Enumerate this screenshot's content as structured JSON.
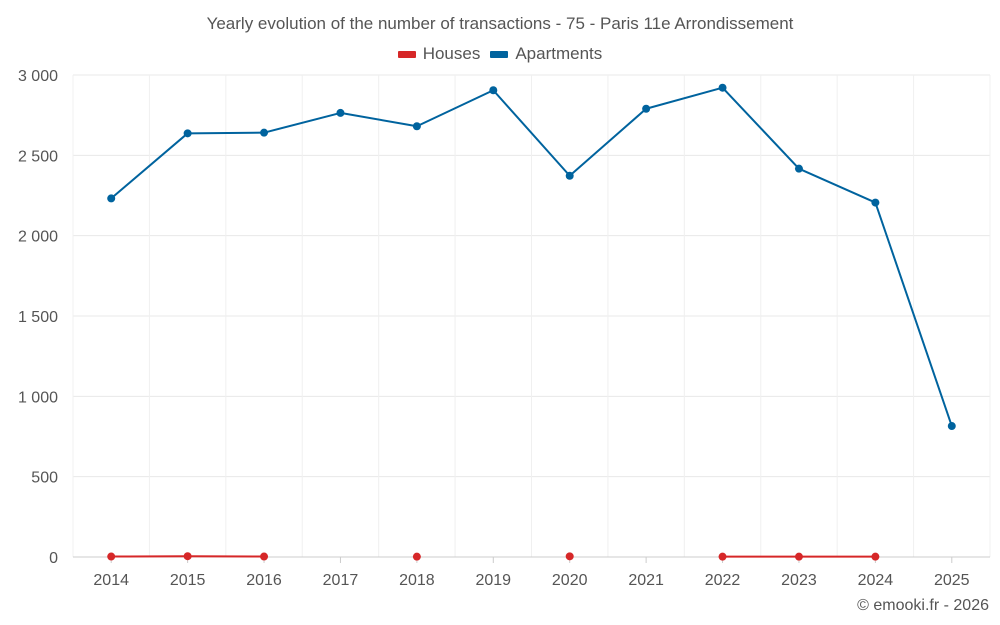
{
  "chart_data": {
    "type": "line",
    "title": "Yearly evolution of the number of transactions - 75 - Paris 11e Arrondissement",
    "xlabel": "",
    "ylabel": "",
    "ylim": [
      0,
      3000
    ],
    "yticks": [
      0,
      500,
      1000,
      1500,
      2000,
      2500,
      3000
    ],
    "ytick_labels": [
      "0",
      "500",
      "1 000",
      "1 500",
      "2 000",
      "2 500",
      "3 000"
    ],
    "categories": [
      "2014",
      "2015",
      "2016",
      "2017",
      "2018",
      "2019",
      "2020",
      "2021",
      "2022",
      "2023",
      "2024",
      "2025"
    ],
    "grid": true,
    "legend_position": "top-center",
    "series": [
      {
        "name": "Houses",
        "color": "#d62728",
        "values": [
          3,
          5,
          3,
          null,
          2,
          null,
          4,
          null,
          2,
          2,
          2,
          null
        ]
      },
      {
        "name": "Apartments",
        "color": "#00639e",
        "values": [
          2232,
          2637,
          2641,
          2764,
          2681,
          2905,
          2373,
          2790,
          2921,
          2417,
          2206,
          815
        ]
      }
    ]
  },
  "footer": {
    "credit": "© emooki.fr - 2026"
  }
}
